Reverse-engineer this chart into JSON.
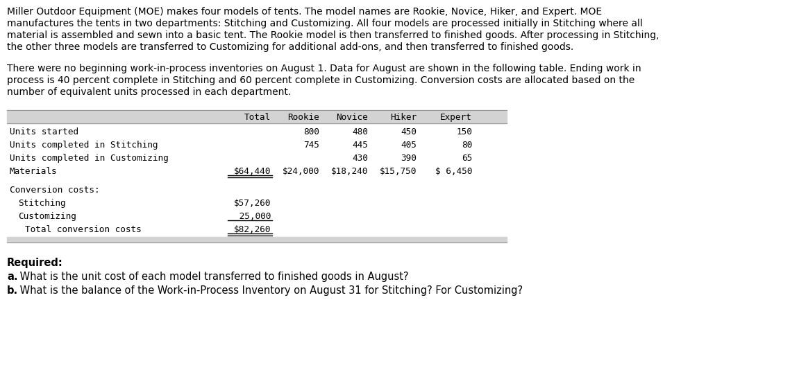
{
  "paragraph1_lines": [
    "Miller Outdoor Equipment (MOE) makes four models of tents. The model names are Rookie, Novice, Hiker, and Expert. MOE",
    "manufactures the tents in two departments: Stitching and Customizing. All four models are processed initially in Stitching where all",
    "material is assembled and sewn into a basic tent. The Rookie model is then transferred to finished goods. After processing in Stitching,",
    "the other three models are transferred to Customizing for additional add-ons, and then transferred to finished goods."
  ],
  "paragraph2_lines": [
    "There were no beginning work-in-process inventories on August 1. Data for August are shown in the following table. Ending work in",
    "process is 40 percent complete in Stitching and 60 percent complete in Customizing. Conversion costs are allocated based on the",
    "number of equivalent units processed in each department."
  ],
  "req_label": "Required:",
  "req_a_bold": "a.",
  "req_a_rest": " What is the unit cost of each model transferred to finished goods in August?",
  "req_b_bold": "b.",
  "req_b_rest": " What is the balance of the Work-in-Process Inventory on August 31 for Stitching? For Customizing?",
  "bg_color": "#ffffff",
  "header_bg": "#d3d3d3",
  "footer_bg": "#d3d3d3",
  "font_size_body": 10.0,
  "font_size_table": 9.2,
  "font_size_req": 10.5
}
